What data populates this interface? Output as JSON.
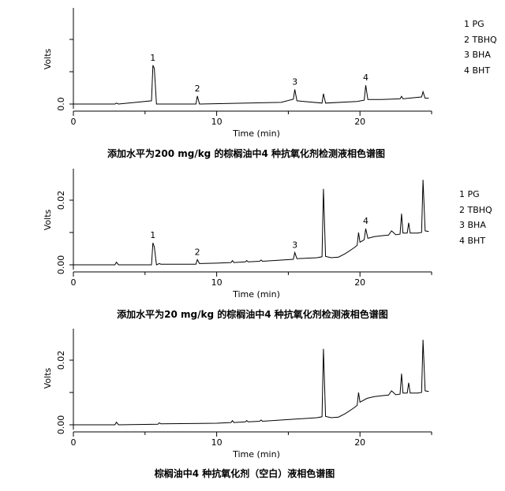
{
  "chart_data": [
    {
      "type": "line",
      "title": "添加水平为200 mg/kg 的棕榈油中4 种抗氧化剂检测液相色谱图",
      "xlabel": "Time (min)",
      "ylabel": "Volts",
      "xlim": [
        0,
        25
      ],
      "ylim": [
        -0.002,
        0.028
      ],
      "x_ticks": [
        "0",
        "10",
        "20"
      ],
      "y_ticks": [
        "0.0"
      ],
      "grid": false,
      "legend_position": "top-right, outside plot",
      "legend": [
        "1 PG",
        "2 TBHQ",
        "3 BHA",
        "4 BHT"
      ],
      "series": [
        {
          "x": [
            0,
            2.9,
            3.0,
            3.15,
            5.45,
            5.55,
            5.65,
            5.8,
            8.55,
            8.65,
            8.8,
            14.5,
            15.35,
            15.45,
            15.6,
            17.35,
            17.45,
            17.6,
            19.8,
            20.3,
            20.4,
            20.55,
            21.5,
            22.8,
            22.9,
            23.0,
            23.4,
            24.3,
            24.4,
            24.55,
            24.8
          ],
          "y": [
            0,
            0,
            0.0003,
            0,
            0.001,
            0.012,
            0.011,
            0,
            0,
            0.0025,
            0,
            0.0005,
            0.0015,
            0.0045,
            0.001,
            0.0003,
            0.0032,
            0.0003,
            0.0008,
            0.0012,
            0.0058,
            0.0014,
            0.0014,
            0.0016,
            0.0024,
            0.0016,
            0.0018,
            0.0022,
            0.0038,
            0.0018,
            0.0018
          ]
        }
      ],
      "annotations": [
        {
          "label": "1",
          "x": 5.55,
          "y": 0.012
        },
        {
          "label": "2",
          "x": 8.65,
          "y": 0.0025
        },
        {
          "label": "3",
          "x": 15.45,
          "y": 0.0045
        },
        {
          "label": "4",
          "x": 20.4,
          "y": 0.0058
        }
      ]
    },
    {
      "type": "line",
      "title": "添加水平为20 mg/kg 的棕榈油中4 种抗氧化剂检测液相色谱图",
      "xlabel": "Time (min)",
      "ylabel": "Volts",
      "xlim": [
        0,
        25
      ],
      "ylim": [
        -0.002,
        0.028
      ],
      "x_ticks": [
        "0",
        "10",
        "20"
      ],
      "y_ticks": [
        "0.00",
        "0.02"
      ],
      "grid": false,
      "legend_position": "right, outside plot",
      "legend": [
        "1 PG",
        "2 TBHQ",
        "3 BHA",
        "4 BHT"
      ],
      "series": [
        {
          "x": [
            0,
            2.9,
            3.0,
            3.15,
            5.45,
            5.55,
            5.65,
            5.8,
            6.0,
            6.1,
            6.2,
            8.55,
            8.65,
            8.8,
            10.0,
            11.0,
            11.1,
            11.2,
            12.0,
            12.1,
            12.2,
            13.0,
            13.1,
            13.2,
            15.35,
            15.45,
            15.6,
            17.0,
            17.35,
            17.45,
            17.6,
            18.0,
            18.5,
            19.0,
            19.5,
            19.8,
            19.9,
            20.0,
            20.2,
            20.3,
            20.4,
            20.55,
            21.0,
            21.5,
            22.0,
            22.2,
            22.5,
            22.8,
            22.9,
            23.0,
            23.3,
            23.4,
            23.5,
            24.0,
            24.3,
            24.4,
            24.55,
            24.8
          ],
          "y": [
            0,
            0,
            0.0008,
            0,
            0,
            0.0068,
            0.0055,
            0,
            0.0004,
            0.0002,
            0.0002,
            0.0002,
            0.0016,
            0.0004,
            0.0005,
            0.0007,
            0.0013,
            0.0007,
            0.0009,
            0.0013,
            0.0009,
            0.0011,
            0.0015,
            0.0011,
            0.0017,
            0.0038,
            0.0019,
            0.0022,
            0.0025,
            0.0235,
            0.0026,
            0.0022,
            0.0024,
            0.0035,
            0.005,
            0.006,
            0.01,
            0.007,
            0.0075,
            0.0078,
            0.0112,
            0.0082,
            0.0087,
            0.009,
            0.0092,
            0.0105,
            0.0093,
            0.0095,
            0.0158,
            0.0098,
            0.0098,
            0.013,
            0.0098,
            0.0098,
            0.01,
            0.0263,
            0.0105,
            0.0103
          ]
        }
      ],
      "annotations": [
        {
          "label": "1",
          "x": 5.55,
          "y": 0.0068
        },
        {
          "label": "2",
          "x": 8.65,
          "y": 0.0016
        },
        {
          "label": "3",
          "x": 15.45,
          "y": 0.0038
        },
        {
          "label": "4",
          "x": 20.4,
          "y": 0.0112
        }
      ]
    },
    {
      "type": "line",
      "title": "棕榈油中4 种抗氧化剂（空白）液相色谱图",
      "xlabel": "Time (min)",
      "ylabel": "Volts",
      "xlim": [
        0,
        25
      ],
      "ylim": [
        -0.002,
        0.028
      ],
      "x_ticks": [
        "0",
        "10",
        "20"
      ],
      "y_ticks": [
        "0.00",
        "0.02"
      ],
      "grid": false,
      "series": [
        {
          "x": [
            0,
            2.9,
            3.0,
            3.15,
            5.9,
            6.0,
            6.1,
            10.0,
            11.0,
            11.1,
            11.2,
            12.0,
            12.1,
            12.2,
            13.0,
            13.1,
            13.2,
            17.0,
            17.35,
            17.45,
            17.6,
            18.0,
            18.5,
            19.0,
            19.5,
            19.8,
            19.9,
            20.0,
            20.2,
            20.5,
            21.0,
            21.5,
            22.0,
            22.2,
            22.5,
            22.8,
            22.9,
            23.0,
            23.3,
            23.4,
            23.5,
            24.0,
            24.3,
            24.4,
            24.55,
            24.8
          ],
          "y": [
            0,
            0,
            0.0008,
            0,
            0.0002,
            0.0006,
            0.0003,
            0.0005,
            0.0007,
            0.0013,
            0.0007,
            0.0009,
            0.0013,
            0.0009,
            0.0011,
            0.0015,
            0.0011,
            0.0022,
            0.0025,
            0.0235,
            0.0026,
            0.0022,
            0.0024,
            0.0035,
            0.005,
            0.006,
            0.01,
            0.007,
            0.0075,
            0.0082,
            0.0087,
            0.009,
            0.0092,
            0.0105,
            0.0093,
            0.0095,
            0.0158,
            0.0098,
            0.0098,
            0.013,
            0.0098,
            0.0098,
            0.01,
            0.0263,
            0.0105,
            0.0103
          ]
        }
      ],
      "annotations": []
    }
  ]
}
